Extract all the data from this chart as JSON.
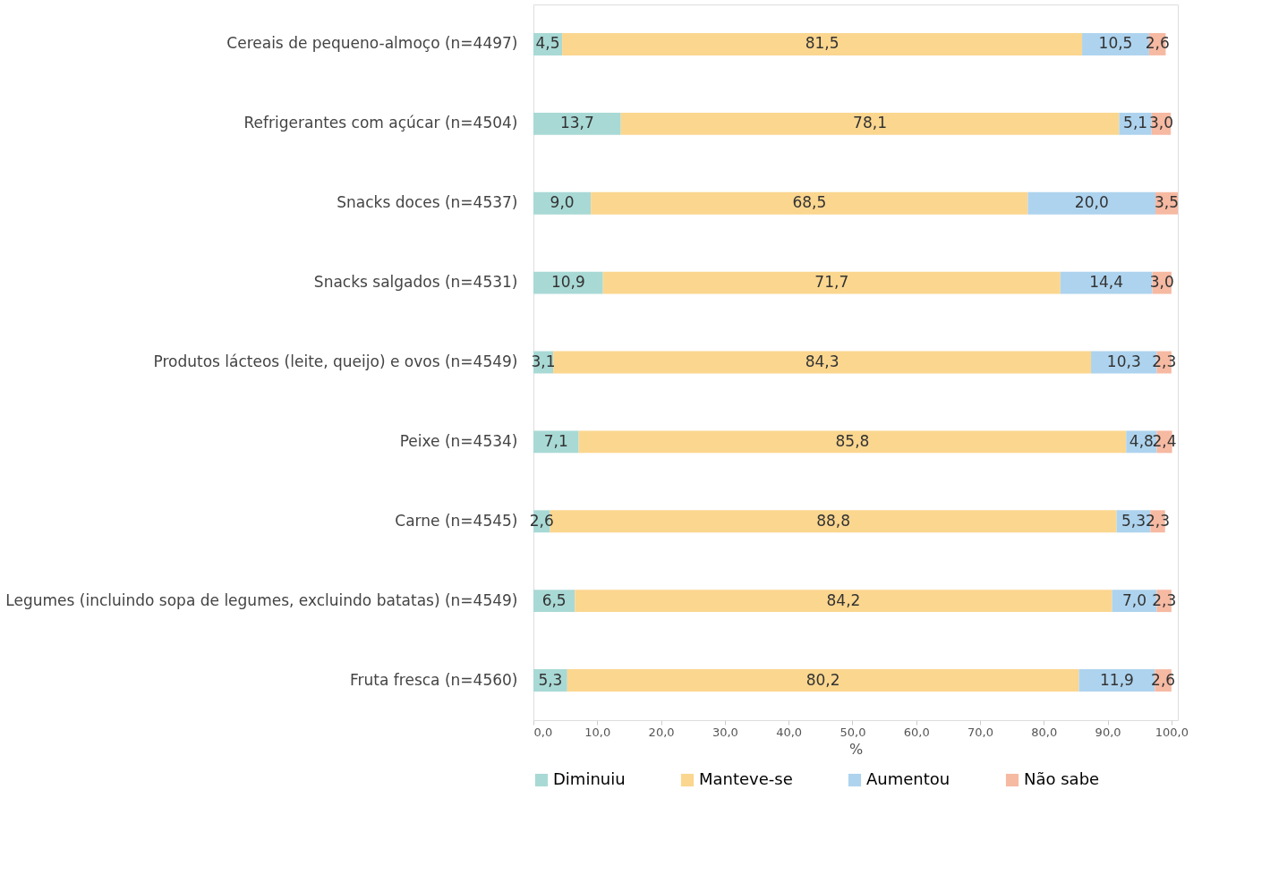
{
  "chart_data": {
    "type": "bar",
    "orientation": "horizontal",
    "stacked": true,
    "xlabel": "%",
    "legend": "bottom",
    "grid": false,
    "categories": [
      "Cereais de pequeno-almoço (n=4497)",
      "Refrigerantes com açúcar (n=4504)",
      "Snacks doces (n=4537)",
      "Snacks salgados (n=4531)",
      "Produtos lácteos (leite, queijo) e ovos (n=4549)",
      "Peixe (n=4534)",
      "Carne (n=4545)",
      "Legumes (incluindo sopa de legumes, excluindo batatas) (n=4549)",
      "Fruta fresca (n=4560)"
    ],
    "xlim": [
      0,
      101
    ],
    "xticks": [
      {
        "value": 0,
        "label": "0,0"
      },
      {
        "value": 10,
        "label": "10,0"
      },
      {
        "value": 20,
        "label": "20,0"
      },
      {
        "value": 30,
        "label": "30,0"
      },
      {
        "value": 40,
        "label": "40,0"
      },
      {
        "value": 50,
        "label": "50,0"
      },
      {
        "value": 60,
        "label": "60,0"
      },
      {
        "value": 70,
        "label": "70,0"
      },
      {
        "value": 80,
        "label": "80,0"
      },
      {
        "value": 90,
        "label": "90,0"
      },
      {
        "value": 100,
        "label": "100,0"
      }
    ],
    "series": [
      {
        "name": "Diminuiu",
        "color": "#a8d9d5",
        "values": [
          4.5,
          13.7,
          9.0,
          10.9,
          3.1,
          7.1,
          2.6,
          6.5,
          5.3
        ],
        "value_labels": [
          "4,5",
          "13,7",
          "9,0",
          "10,9",
          "3,1",
          "7,1",
          "2,6",
          "6,5",
          "5,3"
        ]
      },
      {
        "name": "Manteve-se",
        "color": "#fbd68f",
        "values": [
          81.5,
          78.1,
          68.5,
          71.7,
          84.3,
          85.8,
          88.8,
          84.2,
          80.2
        ],
        "value_labels": [
          "81,5",
          "78,1",
          "68,5",
          "71,7",
          "84,3",
          "85,8",
          "88,8",
          "84,2",
          "80,2"
        ]
      },
      {
        "name": "Aumentou",
        "color": "#aed3ee",
        "values": [
          10.5,
          5.1,
          20.0,
          14.4,
          10.3,
          4.8,
          5.3,
          7.0,
          11.9
        ],
        "value_labels": [
          "10,5",
          "5,1",
          "20,0",
          "14,4",
          "10,3",
          "4,8",
          "5,3",
          "7,0",
          "11,9"
        ]
      },
      {
        "name": "Não sabe",
        "color": "#f6b9a2",
        "values": [
          2.6,
          3.0,
          3.5,
          3.0,
          2.3,
          2.4,
          2.3,
          2.3,
          2.6
        ],
        "value_labels": [
          "2,6",
          "3,0",
          "3,5",
          "3,0",
          "2,3",
          "2,4",
          "2,3",
          "2,3",
          "2,6"
        ]
      }
    ]
  }
}
